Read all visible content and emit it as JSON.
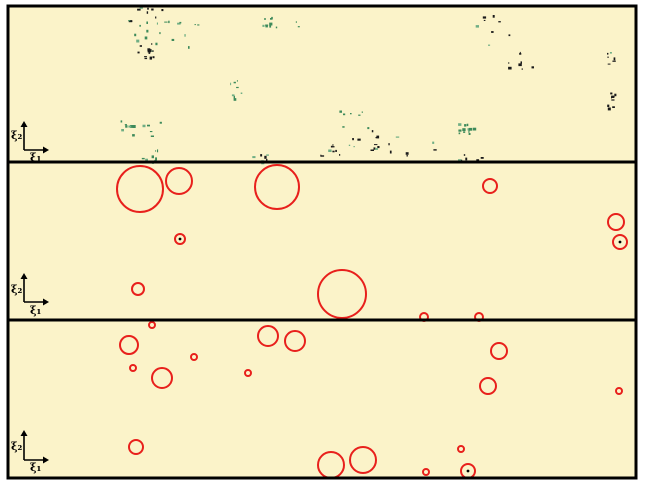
{
  "colors": {
    "background": "#fbf3c9",
    "frame": "#000000",
    "circle": "#e8201c",
    "speck_dark": "#1a1a1a",
    "speck_green": "#3d8a5a"
  },
  "panels": [
    {
      "name": "panel-top",
      "axis": {
        "x_label": "ξ₁",
        "y_label": "ξ₂"
      }
    },
    {
      "name": "panel-middle",
      "axis": {
        "x_label": "ξ₁",
        "y_label": "ξ₂"
      }
    },
    {
      "name": "panel-bottom",
      "axis": {
        "x_label": "ξ₁",
        "y_label": "ξ₂"
      }
    }
  ]
}
